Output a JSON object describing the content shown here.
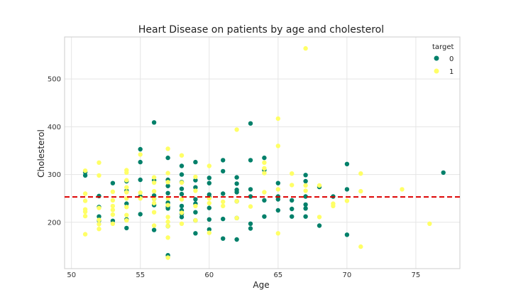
{
  "chart_data": {
    "type": "scatter",
    "title": "Heart Disease on patients by age and cholesterol",
    "xlabel": "Age",
    "ylabel": "Cholesterol",
    "xlim": [
      49.5,
      78.2
    ],
    "ylim": [
      103,
      588
    ],
    "xticks": [
      50,
      55,
      60,
      65,
      70,
      75
    ],
    "yticks": [
      200,
      300,
      400,
      500
    ],
    "grid": true,
    "legend": {
      "title": "target",
      "placement": "top-right"
    },
    "reference_line": {
      "y": 253,
      "color": "#dd0000",
      "style": "dashed"
    },
    "series": [
      {
        "name": "0",
        "color": "#00806a",
        "points": [
          [
            51,
            305
          ],
          [
            51,
            298
          ],
          [
            52,
            255
          ],
          [
            52,
            232
          ],
          [
            52,
            212
          ],
          [
            52,
            204
          ],
          [
            53,
            282
          ],
          [
            53,
            203
          ],
          [
            54,
            286
          ],
          [
            54,
            266
          ],
          [
            54,
            239
          ],
          [
            54,
            206
          ],
          [
            54,
            188
          ],
          [
            55,
            353
          ],
          [
            55,
            326
          ],
          [
            55,
            289
          ],
          [
            55,
            254
          ],
          [
            55,
            217
          ],
          [
            56,
            409
          ],
          [
            56,
            288
          ],
          [
            56,
            256
          ],
          [
            56,
            249
          ],
          [
            56,
            236
          ],
          [
            56,
            184
          ],
          [
            57,
            335
          ],
          [
            57,
            289
          ],
          [
            57,
            276
          ],
          [
            57,
            261
          ],
          [
            57,
            241
          ],
          [
            57,
            232
          ],
          [
            57,
            229
          ],
          [
            57,
            192
          ],
          [
            57,
            131
          ],
          [
            58,
            318
          ],
          [
            58,
            300
          ],
          [
            58,
            284
          ],
          [
            58,
            270
          ],
          [
            58,
            259
          ],
          [
            58,
            234
          ],
          [
            58,
            225
          ],
          [
            58,
            218
          ],
          [
            58,
            211
          ],
          [
            59,
            326
          ],
          [
            59,
            288
          ],
          [
            59,
            273
          ],
          [
            59,
            248
          ],
          [
            59,
            239
          ],
          [
            59,
            221
          ],
          [
            59,
            204
          ],
          [
            59,
            177
          ],
          [
            60,
            293
          ],
          [
            60,
            282
          ],
          [
            60,
            258
          ],
          [
            60,
            253
          ],
          [
            60,
            230
          ],
          [
            60,
            206
          ],
          [
            60,
            185
          ],
          [
            61,
            330
          ],
          [
            61,
            307
          ],
          [
            61,
            260
          ],
          [
            61,
            207
          ],
          [
            61,
            166
          ],
          [
            62,
            294
          ],
          [
            62,
            281
          ],
          [
            62,
            268
          ],
          [
            62,
            263
          ],
          [
            62,
            244
          ],
          [
            62,
            209
          ],
          [
            62,
            164
          ],
          [
            63,
            407
          ],
          [
            63,
            330
          ],
          [
            63,
            269
          ],
          [
            63,
            254
          ],
          [
            63,
            197
          ],
          [
            63,
            187
          ],
          [
            64,
            335
          ],
          [
            64,
            309
          ],
          [
            64,
            246
          ],
          [
            64,
            212
          ],
          [
            65,
            282
          ],
          [
            65,
            254
          ],
          [
            65,
            248
          ],
          [
            65,
            225
          ],
          [
            66,
            246
          ],
          [
            66,
            228
          ],
          [
            66,
            212
          ],
          [
            67,
            299
          ],
          [
            67,
            286
          ],
          [
            67,
            254
          ],
          [
            67,
            237
          ],
          [
            67,
            229
          ],
          [
            67,
            212
          ],
          [
            68,
            274
          ],
          [
            68,
            193
          ],
          [
            69,
            254
          ],
          [
            70,
            322
          ],
          [
            70,
            269
          ],
          [
            70,
            174
          ],
          [
            77,
            304
          ]
        ]
      },
      {
        "name": "1",
        "color": "#ffff66",
        "points": [
          [
            51,
            308
          ],
          [
            51,
            260
          ],
          [
            51,
            245
          ],
          [
            51,
            227
          ],
          [
            51,
            222
          ],
          [
            51,
            213
          ],
          [
            51,
            175
          ],
          [
            52,
            325
          ],
          [
            52,
            298
          ],
          [
            52,
            230
          ],
          [
            52,
            205
          ],
          [
            52,
            196
          ],
          [
            52,
            186
          ],
          [
            53,
            264
          ],
          [
            53,
            246
          ],
          [
            53,
            234
          ],
          [
            53,
            226
          ],
          [
            53,
            216
          ],
          [
            53,
            197
          ],
          [
            54,
            309
          ],
          [
            54,
            304
          ],
          [
            54,
            288
          ],
          [
            54,
            273
          ],
          [
            54,
            263
          ],
          [
            54,
            250
          ],
          [
            54,
            232
          ],
          [
            54,
            215
          ],
          [
            54,
            204
          ],
          [
            55,
            342
          ],
          [
            55,
            262
          ],
          [
            55,
            250
          ],
          [
            56,
            294
          ],
          [
            56,
            283
          ],
          [
            56,
            265
          ],
          [
            56,
            249
          ],
          [
            56,
            240
          ],
          [
            56,
            221
          ],
          [
            56,
            193
          ],
          [
            57,
            354
          ],
          [
            57,
            303
          ],
          [
            57,
            284
          ],
          [
            57,
            250
          ],
          [
            57,
            236
          ],
          [
            57,
            211
          ],
          [
            57,
            201
          ],
          [
            57,
            192
          ],
          [
            57,
            168
          ],
          [
            57,
            126
          ],
          [
            58,
            340
          ],
          [
            58,
            283
          ],
          [
            58,
            248
          ],
          [
            58,
            220
          ],
          [
            58,
            197
          ],
          [
            59,
            295
          ],
          [
            59,
            266
          ],
          [
            59,
            234
          ],
          [
            59,
            204
          ],
          [
            60,
            318
          ],
          [
            60,
            250
          ],
          [
            60,
            240
          ],
          [
            60,
            178
          ],
          [
            61,
            243
          ],
          [
            61,
            234
          ],
          [
            62,
            394
          ],
          [
            62,
            244
          ],
          [
            62,
            209
          ],
          [
            63,
            233
          ],
          [
            64,
            325
          ],
          [
            64,
            313
          ],
          [
            64,
            303
          ],
          [
            64,
            263
          ],
          [
            65,
            417
          ],
          [
            65,
            360
          ],
          [
            65,
            269
          ],
          [
            65,
            177
          ],
          [
            66,
            302
          ],
          [
            66,
            278
          ],
          [
            67,
            564
          ],
          [
            67,
            277
          ],
          [
            67,
            266
          ],
          [
            68,
            277
          ],
          [
            68,
            211
          ],
          [
            69,
            239
          ],
          [
            69,
            234
          ],
          [
            70,
            245
          ],
          [
            71,
            302
          ],
          [
            71,
            265
          ],
          [
            71,
            149
          ],
          [
            74,
            269
          ],
          [
            76,
            197
          ]
        ]
      }
    ]
  }
}
